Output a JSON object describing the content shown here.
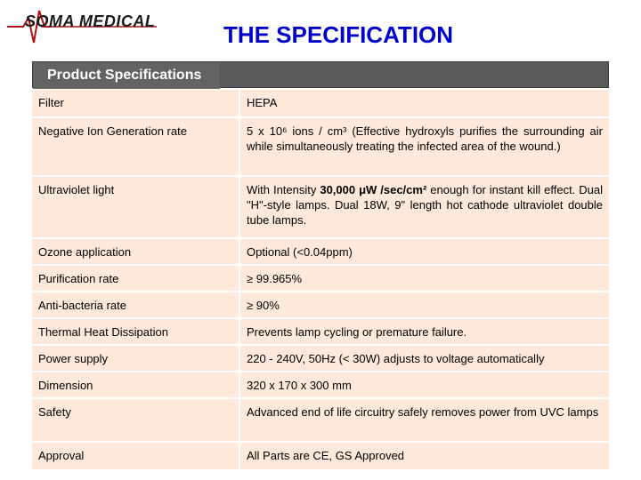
{
  "header": {
    "logo_text": "SOMA MEDICAL",
    "title": "THE SPECIFICATION"
  },
  "table": {
    "heading": "Product Specifications",
    "rows": [
      {
        "label": "Filter",
        "value": "HEPA"
      },
      {
        "label": "Negative Ion Generation rate",
        "value": "5 x 10⁶ ions / cm³ (Effective hydroxyls purifies the surrounding air while simultaneously treating the infected area of the wound.)"
      },
      {
        "label": "Ultraviolet light",
        "value_pre": "With Intensity ",
        "value_bold": "30,000 μW /sec/cm²",
        "value_post": " enough for instant kill effect. Dual \"H\"-style lamps. Dual 18W, 9\" length hot cathode ultraviolet double tube lamps."
      },
      {
        "label": "Ozone application",
        "value": "Optional (<0.04ppm)"
      },
      {
        "label": "Purification rate",
        "value": "≥ 99.965%"
      },
      {
        "label": "Anti-bacteria rate",
        "value": "≥ 90%"
      },
      {
        "label": "Thermal Heat Dissipation",
        "value": "Prevents lamp cycling or premature failure."
      },
      {
        "label": "Power supply",
        "value": "220 - 240V, 50Hz (< 30W) adjusts to voltage automatically"
      },
      {
        "label": "Dimension",
        "value": "320 x 170 x 300 mm"
      },
      {
        "label": "Safety",
        "value": "Advanced end of life circuitry safely removes power from UVC lamps"
      },
      {
        "label": "Approval",
        "value": "All Parts are CE, GS Approved"
      }
    ]
  }
}
